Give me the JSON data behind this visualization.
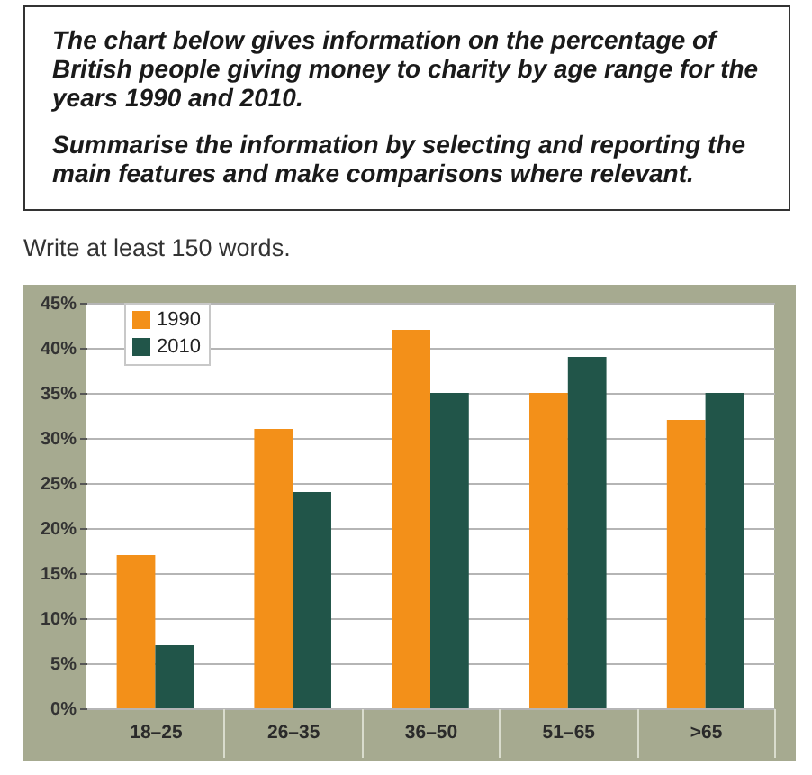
{
  "chart_data": {
    "type": "bar",
    "title": "The chart below gives information on the percentage of British people giving money to charity by age range for the years 1990 and 2010.",
    "subtitle": "Summarise the information by selecting and reporting the main features and make comparisons where relevant.",
    "annotations": [
      "Write at least 150 words."
    ],
    "categories": [
      "18–25",
      "26–35",
      "36–50",
      "51–65",
      ">65"
    ],
    "series": [
      {
        "name": "1990",
        "color": "#f39019",
        "values": [
          17,
          31,
          42,
          35,
          32
        ]
      },
      {
        "name": "2010",
        "color": "#215549",
        "values": [
          7,
          24,
          35,
          39,
          35
        ]
      }
    ],
    "ylim": [
      0,
      45
    ],
    "yticks": [
      {
        "value": 0,
        "label": "0%"
      },
      {
        "value": 5,
        "label": "5%"
      },
      {
        "value": 10,
        "label": "10%"
      },
      {
        "value": 15,
        "label": "15%"
      },
      {
        "value": 20,
        "label": "20%"
      },
      {
        "value": 25,
        "label": "25%"
      },
      {
        "value": 30,
        "label": "30%"
      },
      {
        "value": 35,
        "label": "35%"
      },
      {
        "value": 40,
        "label": "40%"
      },
      {
        "value": 45,
        "label": "45%"
      }
    ],
    "grid": "y",
    "legend": "top left"
  }
}
